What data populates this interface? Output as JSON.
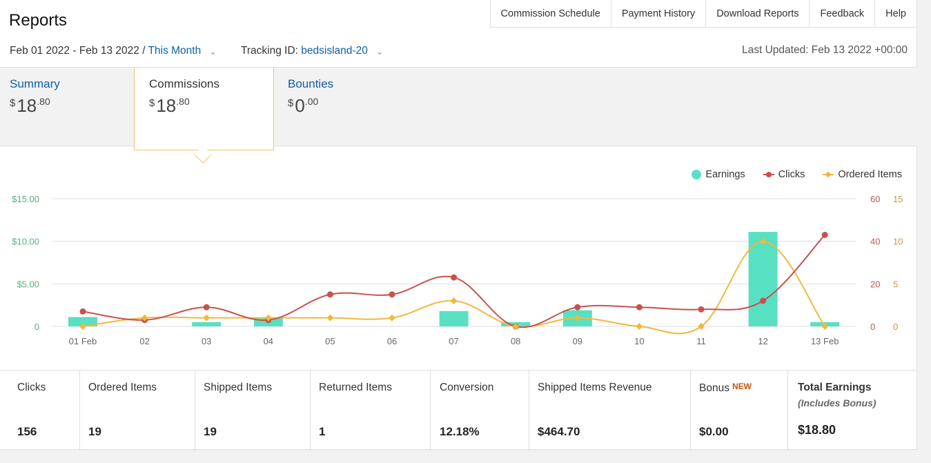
{
  "header": {
    "title": "Reports",
    "nav": [
      "Commission Schedule",
      "Payment History",
      "Download Reports",
      "Feedback",
      "Help"
    ]
  },
  "filters": {
    "date_range": "Feb 01 2022 - Feb 13 2022",
    "separator": "/",
    "period": "This Month",
    "tracking_label": "Tracking ID:",
    "tracking_id": "bedsisland-20",
    "last_updated": "Last Updated: Feb 13 2022 +00:00"
  },
  "tabs": [
    {
      "label": "Summary",
      "dollar": "$",
      "whole": "18",
      "cents": ".80",
      "active": false
    },
    {
      "label": "Commissions",
      "dollar": "$",
      "whole": "18",
      "cents": ".80",
      "active": true
    },
    {
      "label": "Bounties",
      "dollar": "$",
      "whole": "0",
      "cents": ".00",
      "active": false
    }
  ],
  "legend": {
    "earnings": "Earnings",
    "clicks": "Clicks",
    "ordered": "Ordered Items"
  },
  "colors": {
    "earnings": "#58e0c2",
    "clicks": "#c8504f",
    "ordered": "#f0b93b",
    "axis_left": "#5aab7d",
    "axis_right_clicks": "#b85a4a",
    "axis_right_items": "#c9963f",
    "link": "#0a5fa8"
  },
  "chart_data": {
    "type": "bar",
    "categories": [
      "01 Feb",
      "02",
      "03",
      "04",
      "05",
      "06",
      "07",
      "08",
      "09",
      "10",
      "11",
      "12",
      "13 Feb"
    ],
    "series": [
      {
        "name": "Earnings",
        "type": "bar",
        "axis": "left",
        "values": [
          1.1,
          0,
          0.5,
          1.0,
          0,
          0,
          1.8,
          0.5,
          1.9,
          0,
          0,
          11.1,
          0.5
        ]
      },
      {
        "name": "Clicks",
        "type": "line",
        "axis": "right1",
        "values": [
          7,
          3,
          9,
          3,
          15,
          15,
          23,
          0,
          9,
          9,
          8,
          12,
          43
        ]
      },
      {
        "name": "Ordered Items",
        "type": "line",
        "axis": "right2",
        "values": [
          0,
          1,
          1,
          1,
          1,
          1,
          3,
          0,
          1,
          0,
          0,
          10,
          0
        ]
      }
    ],
    "y_left": {
      "ticks": [
        "0",
        "$5.00",
        "$10.00",
        "$15.00"
      ],
      "range": [
        0,
        15
      ]
    },
    "y_right1": {
      "ticks": [
        "0",
        "20",
        "40",
        "60"
      ],
      "range": [
        0,
        60
      ]
    },
    "y_right2": {
      "ticks": [
        "0",
        "5",
        "10",
        "15"
      ],
      "range": [
        0,
        15
      ]
    },
    "grid": true,
    "legend_position": "top-right"
  },
  "stats": [
    {
      "label": "Clicks",
      "value": "156"
    },
    {
      "label": "Ordered Items",
      "value": "19"
    },
    {
      "label": "Shipped Items",
      "value": "19"
    },
    {
      "label": "Returned Items",
      "value": "1"
    },
    {
      "label": "Conversion",
      "value": "12.18%"
    },
    {
      "label": "Shipped Items Revenue",
      "value": "$464.70"
    },
    {
      "label": "Bonus",
      "badge": "NEW",
      "value": "$0.00"
    },
    {
      "label": "Total Earnings",
      "sub": "(Includes Bonus)",
      "value": "$18.80"
    }
  ]
}
